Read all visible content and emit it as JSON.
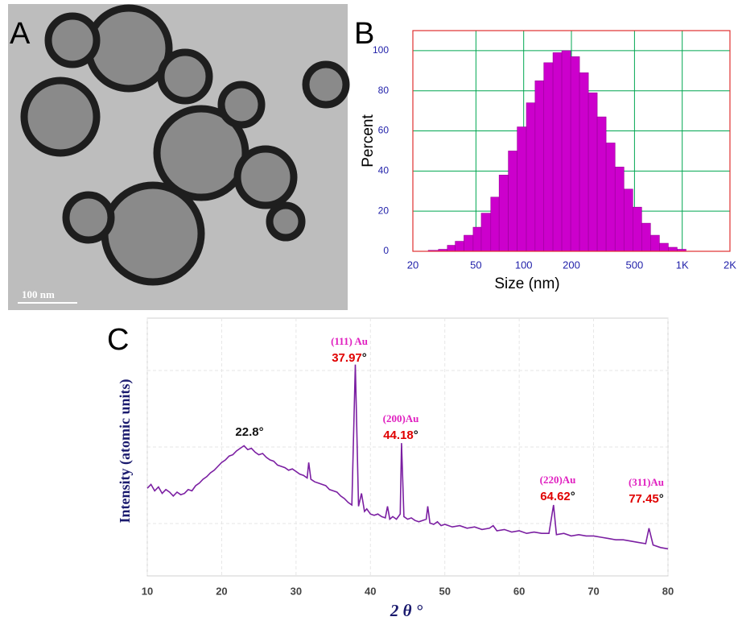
{
  "image_panel": {
    "label": "A",
    "scale_bar": "100 nm"
  },
  "chart_data": [
    {
      "type": "histogram",
      "label": "B",
      "x_label": "Size (nm)",
      "y_label": "Percent",
      "xscale": "log",
      "grid": true,
      "color": "#cc00cc",
      "bins": [
        25,
        29,
        33,
        37,
        42,
        48,
        54,
        62,
        70,
        80,
        91,
        104,
        118,
        134,
        153,
        174,
        198,
        225,
        256,
        291,
        331,
        377,
        429,
        488,
        555,
        631,
        718,
        817,
        929,
        1057
      ],
      "values": [
        0.5,
        1,
        3,
        5,
        8,
        12,
        19,
        27,
        38,
        50,
        62,
        74,
        85,
        94,
        99,
        100,
        97,
        89,
        79,
        67,
        54,
        42,
        31,
        22,
        14,
        8,
        4,
        2,
        1
      ],
      "xlim": [
        20,
        2000
      ],
      "xticks": [
        20,
        50,
        100,
        200,
        500,
        {
          "value": 1000,
          "label": "1K"
        },
        {
          "value": 2000,
          "label": "2K"
        }
      ],
      "ylim": [
        0,
        110
      ],
      "yticks": [
        0,
        20,
        40,
        60,
        80,
        100
      ]
    },
    {
      "type": "line",
      "label": "C",
      "x_label": "2 θ °",
      "y_label": "Intensity (atomic units)",
      "grid": true,
      "color": "#7b1fa2",
      "x": [
        10,
        10.5,
        11,
        11.5,
        12,
        12.5,
        13,
        13.5,
        14,
        14.5,
        15,
        15.5,
        16,
        16.5,
        17,
        17.5,
        18,
        18.5,
        19,
        19.5,
        20,
        20.5,
        21,
        21.5,
        22,
        22.5,
        23,
        23.5,
        24,
        24.5,
        25,
        25.5,
        26,
        26.5,
        27,
        27.5,
        28,
        28.5,
        29,
        29.5,
        30,
        30.5,
        31,
        31.5,
        31.7,
        32,
        32.5,
        33,
        33.5,
        34,
        34.5,
        35,
        35.5,
        36,
        36.5,
        37,
        37.5,
        37.97,
        38.4,
        38.8,
        39.2,
        39.5,
        40,
        40.5,
        41,
        41.5,
        42,
        42.3,
        42.6,
        43,
        43.5,
        44,
        44.18,
        44.5,
        45,
        45.5,
        46,
        46.5,
        47,
        47.5,
        47.7,
        48,
        48.5,
        49,
        49.5,
        50,
        51,
        52,
        53,
        54,
        55,
        56,
        56.5,
        57,
        58,
        59,
        60,
        61,
        62,
        63,
        64,
        64.62,
        65,
        66,
        67,
        68,
        69,
        70,
        71,
        72,
        73,
        74,
        75,
        76,
        77,
        77.45,
        78,
        79,
        80
      ],
      "values": [
        34,
        35.5,
        33,
        34.5,
        32,
        33.5,
        32.5,
        31,
        32.5,
        31.5,
        32,
        33.5,
        33,
        35,
        36,
        37.5,
        38.5,
        40,
        41,
        42.5,
        44,
        45,
        46.5,
        47,
        48.5,
        49.5,
        50.5,
        49,
        49.5,
        48,
        47,
        47.5,
        46,
        45,
        44.5,
        43,
        42.5,
        42,
        41,
        41.5,
        40.5,
        39.5,
        39,
        38,
        44,
        37.5,
        36.5,
        36,
        35.5,
        35,
        33.5,
        33,
        32.5,
        31,
        30,
        28.5,
        27.5,
        82,
        27,
        32,
        25,
        26,
        24,
        23.5,
        24,
        23,
        22.5,
        27,
        22,
        23,
        22,
        24,
        51.5,
        23,
        22,
        22.5,
        21.5,
        21,
        21.5,
        22,
        27,
        20.5,
        20,
        21,
        19.5,
        20,
        19,
        19.5,
        18.5,
        19,
        18,
        18.5,
        19.5,
        17.5,
        18,
        17,
        17.5,
        16.5,
        17,
        16.5,
        16.5,
        27.5,
        16,
        16.5,
        15.5,
        16,
        15.5,
        15.5,
        15,
        14.5,
        14,
        14,
        13.5,
        13,
        12.5,
        18.5,
        12,
        11,
        10.5
      ],
      "xlim": [
        10,
        80
      ],
      "xticks": [
        10,
        20,
        30,
        40,
        50,
        60,
        70,
        80
      ],
      "ylim": [
        0,
        100
      ],
      "annotations": [
        {
          "text": "22.8°"
        },
        {
          "label": "(111) Au",
          "text": "37.97",
          "unit": "°"
        },
        {
          "label": "(200)Au",
          "text": "44.18",
          "unit": "°"
        },
        {
          "label": "(220)Au",
          "text": "64.62",
          "unit": "°"
        },
        {
          "label": "(311)Au",
          "text": "77.45",
          "unit": "°"
        }
      ]
    }
  ]
}
